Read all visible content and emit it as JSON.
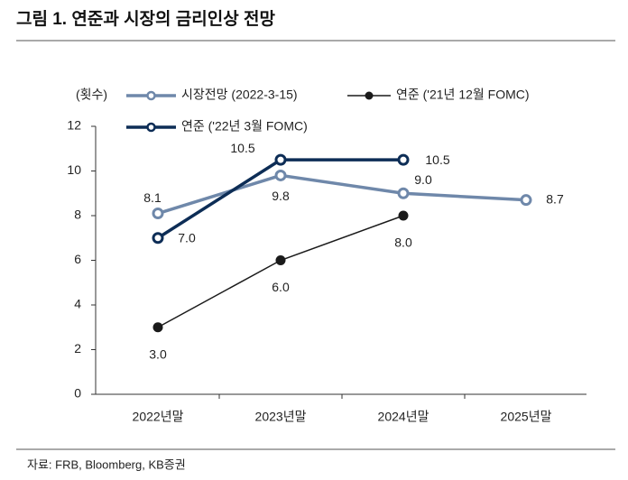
{
  "title": "그림 1. 연준과 시장의 금리인상 전망",
  "source": "자료: FRB, Bloomberg, KB증권",
  "chart_data": {
    "type": "line",
    "y_label": "(횟수)",
    "categories": [
      "2022년말",
      "2023년말",
      "2024년말",
      "2025년말"
    ],
    "ylim": [
      0,
      12
    ],
    "yticks": [
      0,
      2,
      4,
      6,
      8,
      10,
      12
    ],
    "grid": false,
    "series": [
      {
        "name": "시장전망 (2022-3-15)",
        "color": "#6f88aa",
        "marker": "hollow",
        "values": [
          8.1,
          9.8,
          9.0,
          8.7
        ],
        "value_labels": [
          "8.1",
          "9.8",
          "9.0",
          "8.7"
        ]
      },
      {
        "name": "연준 ('21년 12월 FOMC)",
        "color": "#1a1a1a",
        "marker": "filled",
        "values": [
          3.0,
          6.0,
          8.0,
          null
        ],
        "value_labels": [
          "3.0",
          "6.0",
          "8.0",
          null
        ]
      },
      {
        "name": "연준 ('22년 3월 FOMC)",
        "color": "#0d2d56",
        "marker": "hollow",
        "values": [
          7.0,
          10.5,
          10.5,
          null
        ],
        "value_labels": [
          "7.0",
          "10.5",
          "10.5",
          null
        ]
      }
    ]
  }
}
